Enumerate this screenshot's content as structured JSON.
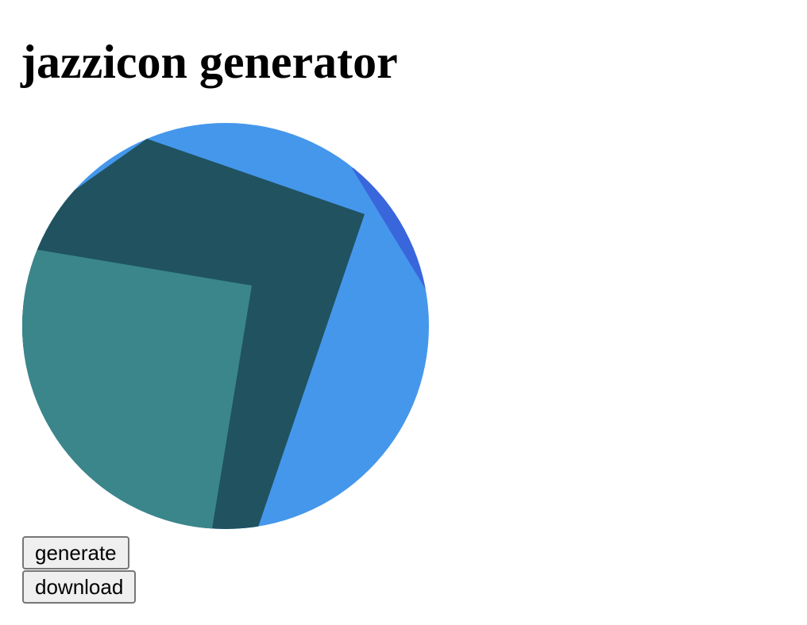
{
  "page": {
    "title": "jazzicon generator"
  },
  "avatar": {
    "colors": {
      "background": "#4597eb",
      "shape_dark": "#205260",
      "shape_teal": "#3b868a",
      "shape_accent": "#3a66db"
    }
  },
  "buttons": {
    "generate_label": "generate",
    "download_label": "download"
  }
}
